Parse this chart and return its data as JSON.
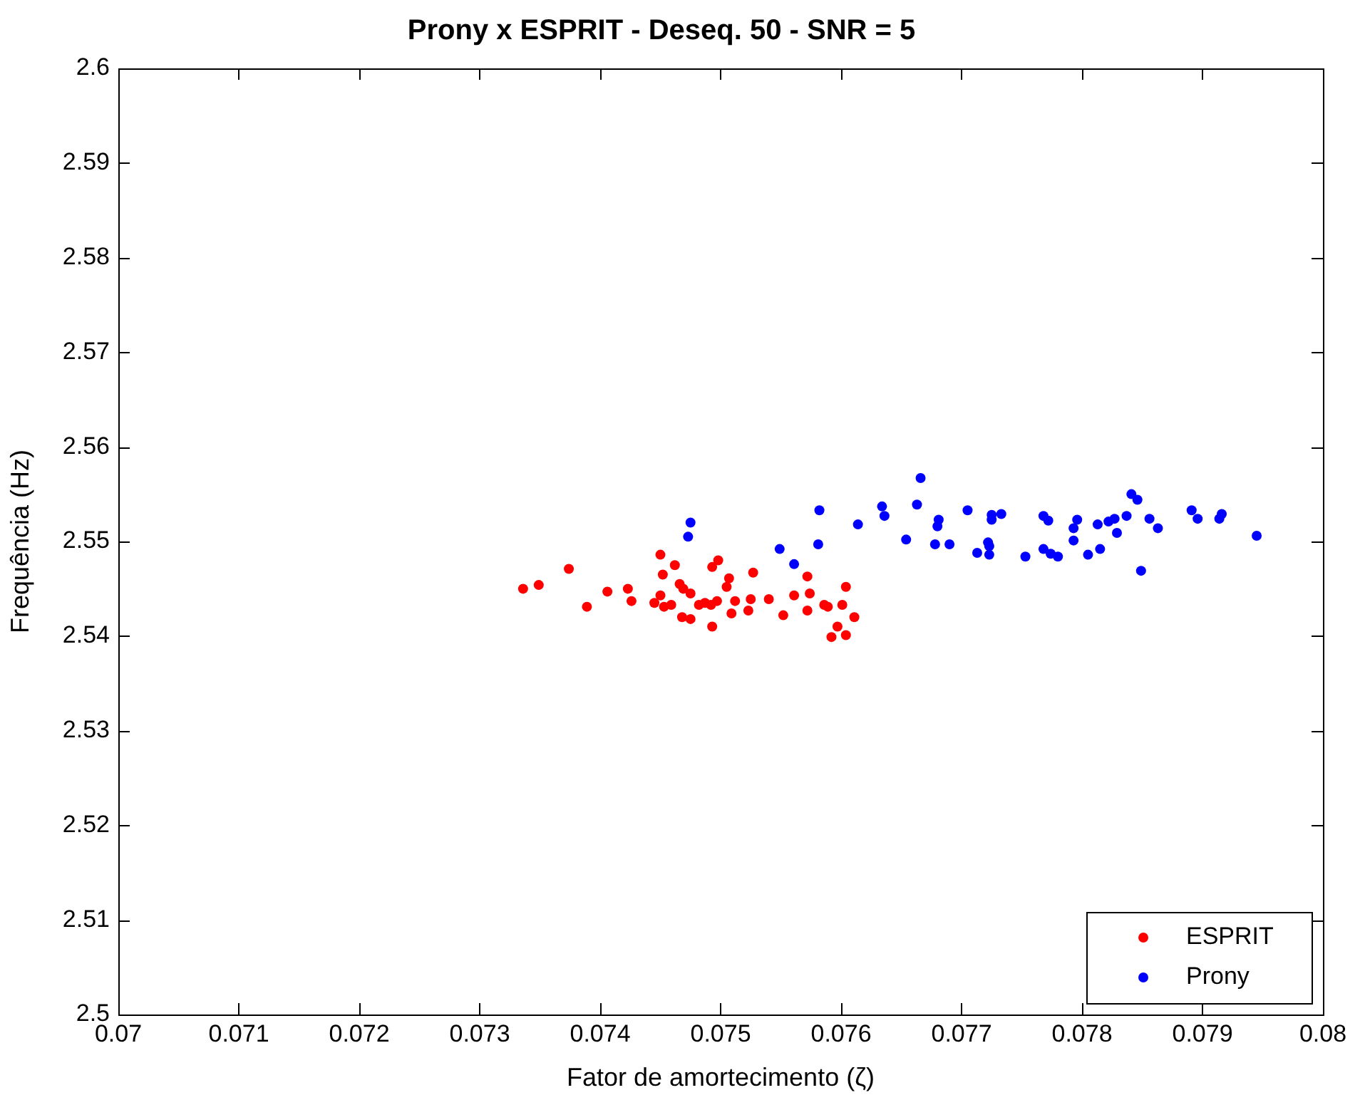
{
  "chart_data": {
    "type": "scatter",
    "title": "Prony x ESPRIT - Deseq. 50 - SNR = 5",
    "xlabel": "Fator de amortecimento (ζ)",
    "ylabel": "Frequência (Hz)",
    "xlim": [
      0.07,
      0.08
    ],
    "xticks": [
      0.07,
      0.071,
      0.072,
      0.073,
      0.074,
      0.075,
      0.076,
      0.077,
      0.078,
      0.079,
      0.08
    ],
    "ylim": [
      2.5,
      2.6
    ],
    "yticks": [
      2.5,
      2.51,
      2.52,
      2.53,
      2.54,
      2.55,
      2.56,
      2.57,
      2.58,
      2.59,
      2.6
    ],
    "grid": false,
    "legend": "bottom right",
    "marker": "circle",
    "series": [
      {
        "name": "ESPRIT",
        "color": "#ff0000",
        "x": [
          0.07336,
          0.07349,
          0.07374,
          0.07389,
          0.07406,
          0.07423,
          0.07426,
          0.07445,
          0.0745,
          0.0745,
          0.07452,
          0.07453,
          0.07459,
          0.07462,
          0.07466,
          0.07469,
          0.07468,
          0.07475,
          0.07475,
          0.07482,
          0.07487,
          0.07492,
          0.07493,
          0.07493,
          0.07498,
          0.07497,
          0.07505,
          0.07507,
          0.07509,
          0.07512,
          0.07523,
          0.07525,
          0.07527,
          0.0754,
          0.07552,
          0.07561,
          0.07572,
          0.07574,
          0.07572,
          0.07586,
          0.07589,
          0.07601,
          0.07604,
          0.07611,
          0.07597,
          0.07592,
          0.07604
        ],
        "values": [
          2.545,
          2.5454,
          2.5471,
          2.5431,
          2.5447,
          2.545,
          2.5437,
          2.5435,
          2.5486,
          2.5443,
          2.5465,
          2.5431,
          2.5433,
          2.5475,
          2.5455,
          2.545,
          2.542,
          2.5445,
          2.5418,
          2.5433,
          2.5435,
          2.5433,
          2.541,
          2.5473,
          2.548,
          2.5437,
          2.5452,
          2.5461,
          2.5424,
          2.5437,
          2.5427,
          2.5439,
          2.5467,
          2.5439,
          2.5422,
          2.5443,
          2.5463,
          2.5445,
          2.5427,
          2.5433,
          2.5431,
          2.5433,
          2.5452,
          2.542,
          2.541,
          2.5399,
          2.5401
        ]
      },
      {
        "name": "Prony",
        "color": "#0000ff",
        "x": [
          0.07475,
          0.07473,
          0.07549,
          0.07561,
          0.07582,
          0.07581,
          0.07614,
          0.07634,
          0.07636,
          0.07654,
          0.07663,
          0.07666,
          0.07681,
          0.0768,
          0.07678,
          0.0769,
          0.07705,
          0.07725,
          0.07725,
          0.07733,
          0.07722,
          0.07723,
          0.07723,
          0.07713,
          0.07768,
          0.07772,
          0.07753,
          0.07768,
          0.07774,
          0.0778,
          0.07796,
          0.07793,
          0.07793,
          0.07805,
          0.07813,
          0.07815,
          0.07822,
          0.07827,
          0.07829,
          0.07837,
          0.07841,
          0.07846,
          0.07856,
          0.07863,
          0.07849,
          0.07891,
          0.07896,
          0.07914,
          0.07916,
          0.07945
        ],
        "values": [
          2.552,
          2.5505,
          2.5492,
          2.5476,
          2.5533,
          2.5497,
          2.5518,
          2.5537,
          2.5527,
          2.5502,
          2.5539,
          2.5567,
          2.5523,
          2.5516,
          2.5497,
          2.5497,
          2.5533,
          2.5528,
          2.5523,
          2.5529,
          2.5499,
          2.5495,
          2.5486,
          2.5488,
          2.5527,
          2.5522,
          2.5484,
          2.5492,
          2.5487,
          2.5484,
          2.5523,
          2.5514,
          2.5501,
          2.5486,
          2.5518,
          2.5492,
          2.5521,
          2.5524,
          2.5509,
          2.5527,
          2.555,
          2.5544,
          2.5524,
          2.5514,
          2.5469,
          2.5533,
          2.5524,
          2.5524,
          2.5529,
          2.5506
        ]
      }
    ]
  }
}
